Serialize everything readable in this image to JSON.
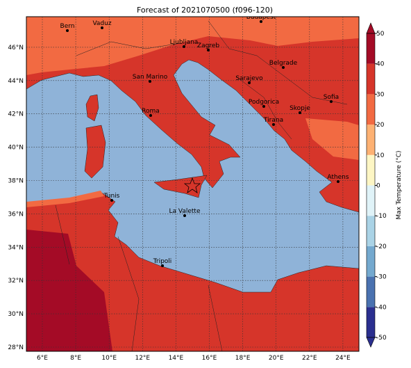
{
  "map": {
    "title": "Forecast of 2021070500 (f096-120)",
    "x_ticks": [
      "6°E",
      "8°E",
      "10°E",
      "12°E",
      "14°E",
      "16°E",
      "18°E",
      "20°E",
      "22°E",
      "24°E"
    ],
    "y_ticks": [
      "28°N",
      "30°N",
      "32°N",
      "34°N",
      "36°N",
      "38°N",
      "40°N",
      "42°N",
      "44°N",
      "46°N"
    ],
    "cities": [
      "Bern",
      "Vaduz",
      "Budapest",
      "Ljubljana",
      "Zagreb",
      "Belgrade",
      "San Marino",
      "Sarajevo",
      "Sofia",
      "Podgorica",
      "Skopje",
      "Roma",
      "Tirana",
      "Athens",
      "Tunis",
      "La Valette",
      "Tripoli"
    ],
    "colorbar": {
      "label": "Max Temperature (°C)",
      "ticks": [
        -50,
        -40,
        -30,
        -20,
        -10,
        0,
        10,
        20,
        30,
        40,
        50
      ],
      "colors": [
        "#2b2f8f",
        "#4a72b0",
        "#74a9cf",
        "#aad3e6",
        "#e0f3f8",
        "#fdf6c4",
        "#fdb173",
        "#f26a42",
        "#d6352a",
        "#a40b26"
      ]
    }
  }
}
